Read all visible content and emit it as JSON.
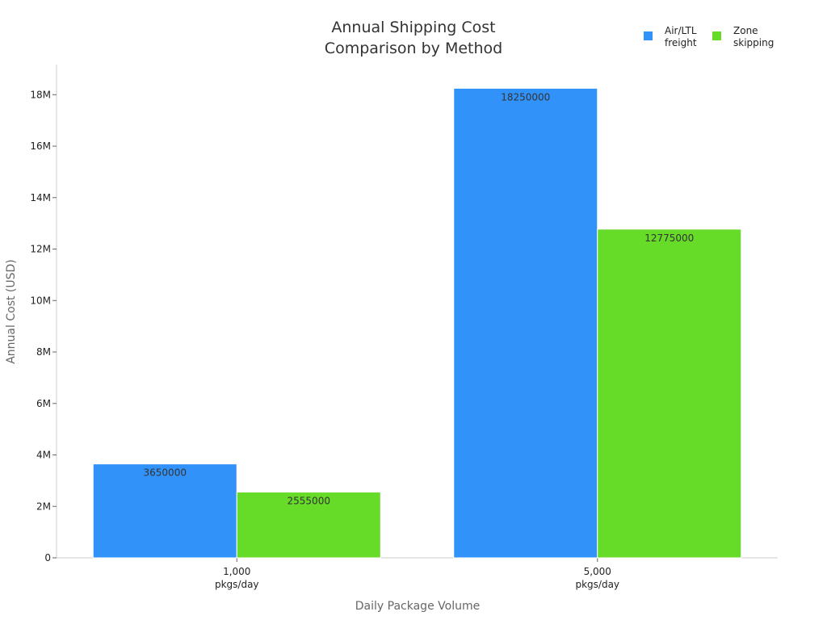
{
  "chart_data": {
    "type": "bar",
    "title": "Annual Shipping Cost Comparison by Method",
    "title_lines": [
      "Annual Shipping Cost",
      "Comparison by Method"
    ],
    "xlabel": "Daily Package Volume",
    "ylabel": "Annual Cost (USD)",
    "categories": [
      "1,000 pkgs/day",
      "5,000 pkgs/day"
    ],
    "category_lines": [
      [
        "1,000",
        "pkgs/day"
      ],
      [
        "5,000",
        "pkgs/day"
      ]
    ],
    "series": [
      {
        "name": "Air/LTL freight",
        "name_lines": [
          "Air/LTL",
          "freight"
        ],
        "color": "#3192f9",
        "values": [
          3650000,
          18250000
        ]
      },
      {
        "name": "Zone skipping",
        "name_lines": [
          "Zone",
          "skipping"
        ],
        "color": "#66db28",
        "values": [
          2555000,
          12775000
        ]
      }
    ],
    "ylim": [
      0,
      19170000
    ],
    "yticks": [
      0,
      2000000,
      4000000,
      6000000,
      8000000,
      10000000,
      12000000,
      14000000,
      16000000,
      18000000
    ],
    "ytick_labels": [
      "0",
      "2M",
      "4M",
      "6M",
      "8M",
      "10M",
      "12M",
      "14M",
      "16M",
      "18M"
    ],
    "legend_position": "top-right",
    "grid": false
  }
}
